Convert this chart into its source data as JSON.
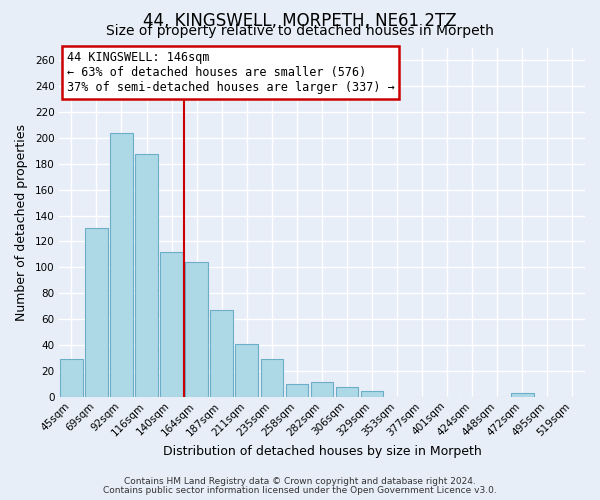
{
  "title": "44, KINGSWELL, MORPETH, NE61 2TZ",
  "subtitle": "Size of property relative to detached houses in Morpeth",
  "xlabel": "Distribution of detached houses by size in Morpeth",
  "ylabel": "Number of detached properties",
  "categories": [
    "45sqm",
    "69sqm",
    "92sqm",
    "116sqm",
    "140sqm",
    "164sqm",
    "187sqm",
    "211sqm",
    "235sqm",
    "258sqm",
    "282sqm",
    "306sqm",
    "329sqm",
    "353sqm",
    "377sqm",
    "401sqm",
    "424sqm",
    "448sqm",
    "472sqm",
    "495sqm",
    "519sqm"
  ],
  "values": [
    29,
    130,
    204,
    188,
    112,
    104,
    67,
    41,
    29,
    10,
    11,
    7,
    4,
    0,
    0,
    0,
    0,
    0,
    3,
    0,
    0
  ],
  "bar_color": "#add8e6",
  "bar_edge_color": "#6aaec8",
  "vline_color": "#cc0000",
  "annotation_title": "44 KINGSWELL: 146sqm",
  "annotation_line1": "← 63% of detached houses are smaller (576)",
  "annotation_line2": "37% of semi-detached houses are larger (337) →",
  "annotation_box_color": "white",
  "annotation_box_edge": "#cc0000",
  "ylim": [
    0,
    270
  ],
  "yticks": [
    0,
    20,
    40,
    60,
    80,
    100,
    120,
    140,
    160,
    180,
    200,
    220,
    240,
    260
  ],
  "footnote1": "Contains HM Land Registry data © Crown copyright and database right 2024.",
  "footnote2": "Contains public sector information licensed under the Open Government Licence v3.0.",
  "bg_color": "#e8eef8",
  "plot_bg_color": "#e8eef8",
  "grid_color": "white",
  "title_fontsize": 12,
  "subtitle_fontsize": 10,
  "axis_label_fontsize": 9,
  "tick_fontsize": 7.5,
  "footnote_fontsize": 6.5
}
